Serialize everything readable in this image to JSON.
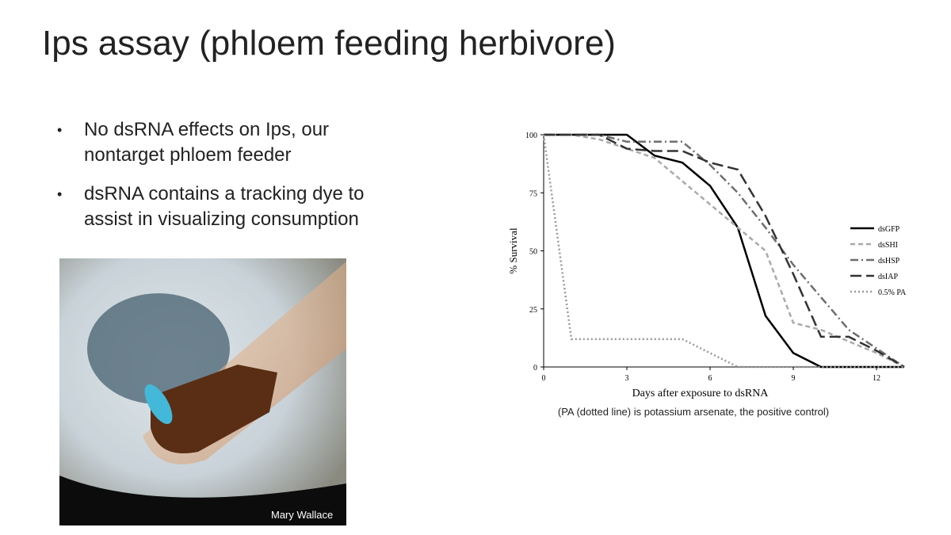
{
  "slide": {
    "title": "Ips assay (phloem feeding herbivore)",
    "bullets": [
      "No dsRNA effects on Ips, our nontarget phloem feeder",
      "dsRNA contains a tracking dye to assist in visualizing consumption"
    ],
    "photo_credit": "Mary Wallace",
    "caption": "(PA (dotted line) is potassium arsenate, the positive control)"
  },
  "chart_data": {
    "type": "line",
    "xlabel": "Days after exposure to dsRNA",
    "ylabel": "% Survival",
    "x": [
      0,
      1,
      2,
      3,
      4,
      5,
      6,
      7,
      8,
      9,
      10,
      11,
      12,
      13
    ],
    "xlim": [
      0,
      13
    ],
    "xticks": [
      0,
      3,
      6,
      9,
      12
    ],
    "ylim": [
      0,
      100
    ],
    "yticks": [
      0,
      25,
      50,
      75,
      100
    ],
    "legend": "right",
    "series": [
      {
        "name": "dsGFP",
        "color": "#000000",
        "dash": "solid",
        "values": [
          100,
          100,
          100,
          100,
          91,
          88,
          78,
          60,
          22,
          6,
          0,
          0,
          0,
          0
        ]
      },
      {
        "name": "dsSHI",
        "color": "#aaaaaa",
        "dash": "dashed",
        "values": [
          100,
          100,
          98,
          94,
          90,
          80,
          70,
          60,
          50,
          19,
          16,
          11,
          6,
          0
        ]
      },
      {
        "name": "dsHSP",
        "color": "#6e6e6e",
        "dash": "dashdot",
        "values": [
          100,
          100,
          100,
          97,
          97,
          97,
          87,
          75,
          60,
          44,
          30,
          16,
          8,
          0
        ]
      },
      {
        "name": "dsIAP",
        "color": "#333333",
        "dash": "longdash",
        "values": [
          100,
          100,
          100,
          94,
          93,
          93,
          88,
          85,
          65,
          40,
          13,
          13,
          7,
          0
        ]
      },
      {
        "name": "0.5% PA",
        "color": "#999999",
        "dash": "dotted",
        "values": [
          100,
          12,
          12,
          12,
          12,
          12,
          6,
          0,
          0,
          0,
          0,
          0,
          0,
          0
        ]
      }
    ]
  }
}
